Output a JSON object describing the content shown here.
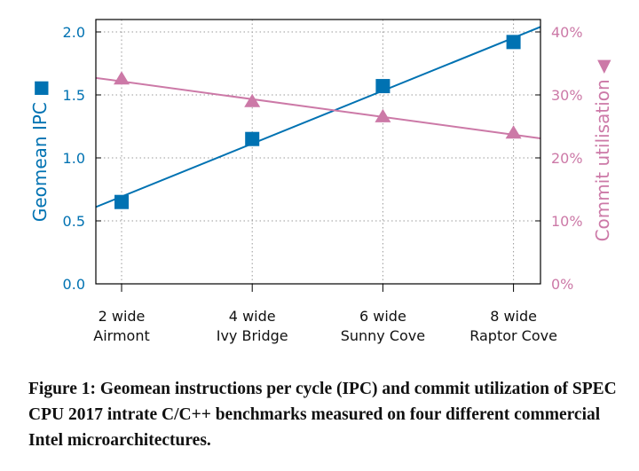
{
  "chart_data": {
    "type": "line",
    "categories": [
      "2 wide\nAirmont",
      "4 wide\nIvy Bridge",
      "6 wide\nSunny Cove",
      "8 wide\nRaptor Cove"
    ],
    "category_lines": [
      [
        "2 wide",
        "Airmont"
      ],
      [
        "4 wide",
        "Ivy Bridge"
      ],
      [
        "6 wide",
        "Sunny Cove"
      ],
      [
        "8 wide",
        "Raptor Cove"
      ]
    ],
    "series": [
      {
        "name": "Geomean IPC",
        "axis": "left",
        "marker": "square",
        "color": "#0072B2",
        "values": [
          0.65,
          1.15,
          1.57,
          1.92
        ],
        "trend": [
          0.61,
          2.04
        ]
      },
      {
        "name": "Commit utilisation",
        "axis": "right",
        "marker": "triangle",
        "color": "#CC79A7",
        "values": [
          32.5,
          28.9,
          26.5,
          23.9
        ],
        "trend": [
          32.7,
          23.1
        ]
      }
    ],
    "ylabel": "Geomean IPC",
    "y2label": "Commit utilisation",
    "ylim": [
      0,
      2.0
    ],
    "y2lim": [
      0,
      40
    ],
    "yticks": [
      "0.0",
      "0.5",
      "1.0",
      "1.5",
      "2.0"
    ],
    "y2ticks": [
      "0%",
      "10%",
      "20%",
      "30%",
      "40%"
    ],
    "grid": true
  },
  "caption": "Figure 1: Geomean instructions per cycle (IPC) and commit utilization of SPEC CPU 2017 intrate C/C++ benchmarks measured on four different commercial Intel microarchitectures."
}
